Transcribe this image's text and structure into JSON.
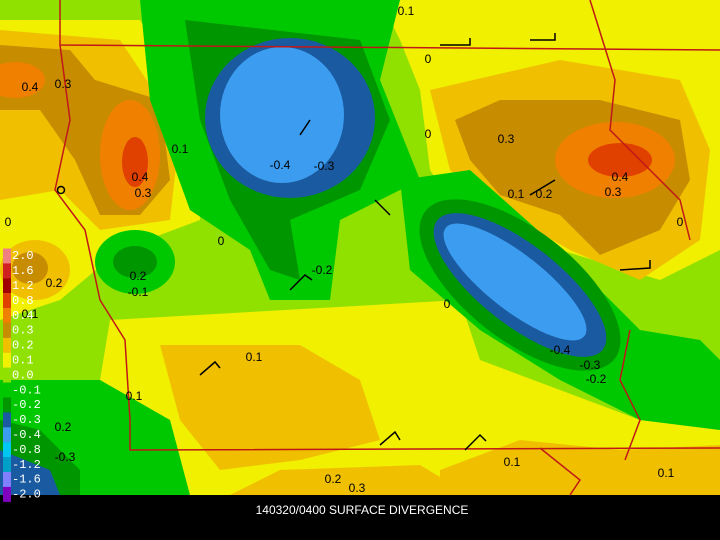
{
  "title": "140320/0400 SURFACE DIVERGENCE",
  "legend": {
    "items": [
      {
        "label": "2.0",
        "color": "#f08080"
      },
      {
        "label": "1.6",
        "color": "#d02020"
      },
      {
        "label": "1.2",
        "color": "#a00000"
      },
      {
        "label": "0.8",
        "color": "#e04000"
      },
      {
        "label": "0.4",
        "color": "#f08000"
      },
      {
        "label": "0.3",
        "color": "#c88c00"
      },
      {
        "label": "0.2",
        "color": "#f0c000"
      },
      {
        "label": "0.1",
        "color": "#f0f000"
      },
      {
        "label": "0.0",
        "color": "#90e000"
      },
      {
        "label": "-0.1",
        "color": "#00c800"
      },
      {
        "label": "-0.2",
        "color": "#009600"
      },
      {
        "label": "-0.3",
        "color": "#1a5aa0"
      },
      {
        "label": "-0.4",
        "color": "#3c9cf0"
      },
      {
        "label": "-0.8",
        "color": "#00c8f0"
      },
      {
        "label": "-1.2",
        "color": "#00a0c8"
      },
      {
        "label": "-1.6",
        "color": "#8080ff"
      },
      {
        "label": "-2.0",
        "color": "#8000c0"
      }
    ]
  },
  "contour_labels": [
    "0.4",
    "0.3",
    "0.1",
    "0.4",
    "0.3",
    "-0.4",
    "-0.3",
    "0",
    "0",
    "-0.2",
    "0.2",
    "-0.1",
    "0.2",
    "0.1",
    "0",
    "0",
    "0.3",
    "0.1",
    "0.2",
    "0.4",
    "0.3",
    "0",
    "0",
    "-0.4",
    "-0.3",
    "-0.2",
    "0.1",
    "0.1",
    "0.2",
    "-0.3",
    "0.1",
    "0.1",
    "0.2",
    "0.3",
    "0.1"
  ]
}
